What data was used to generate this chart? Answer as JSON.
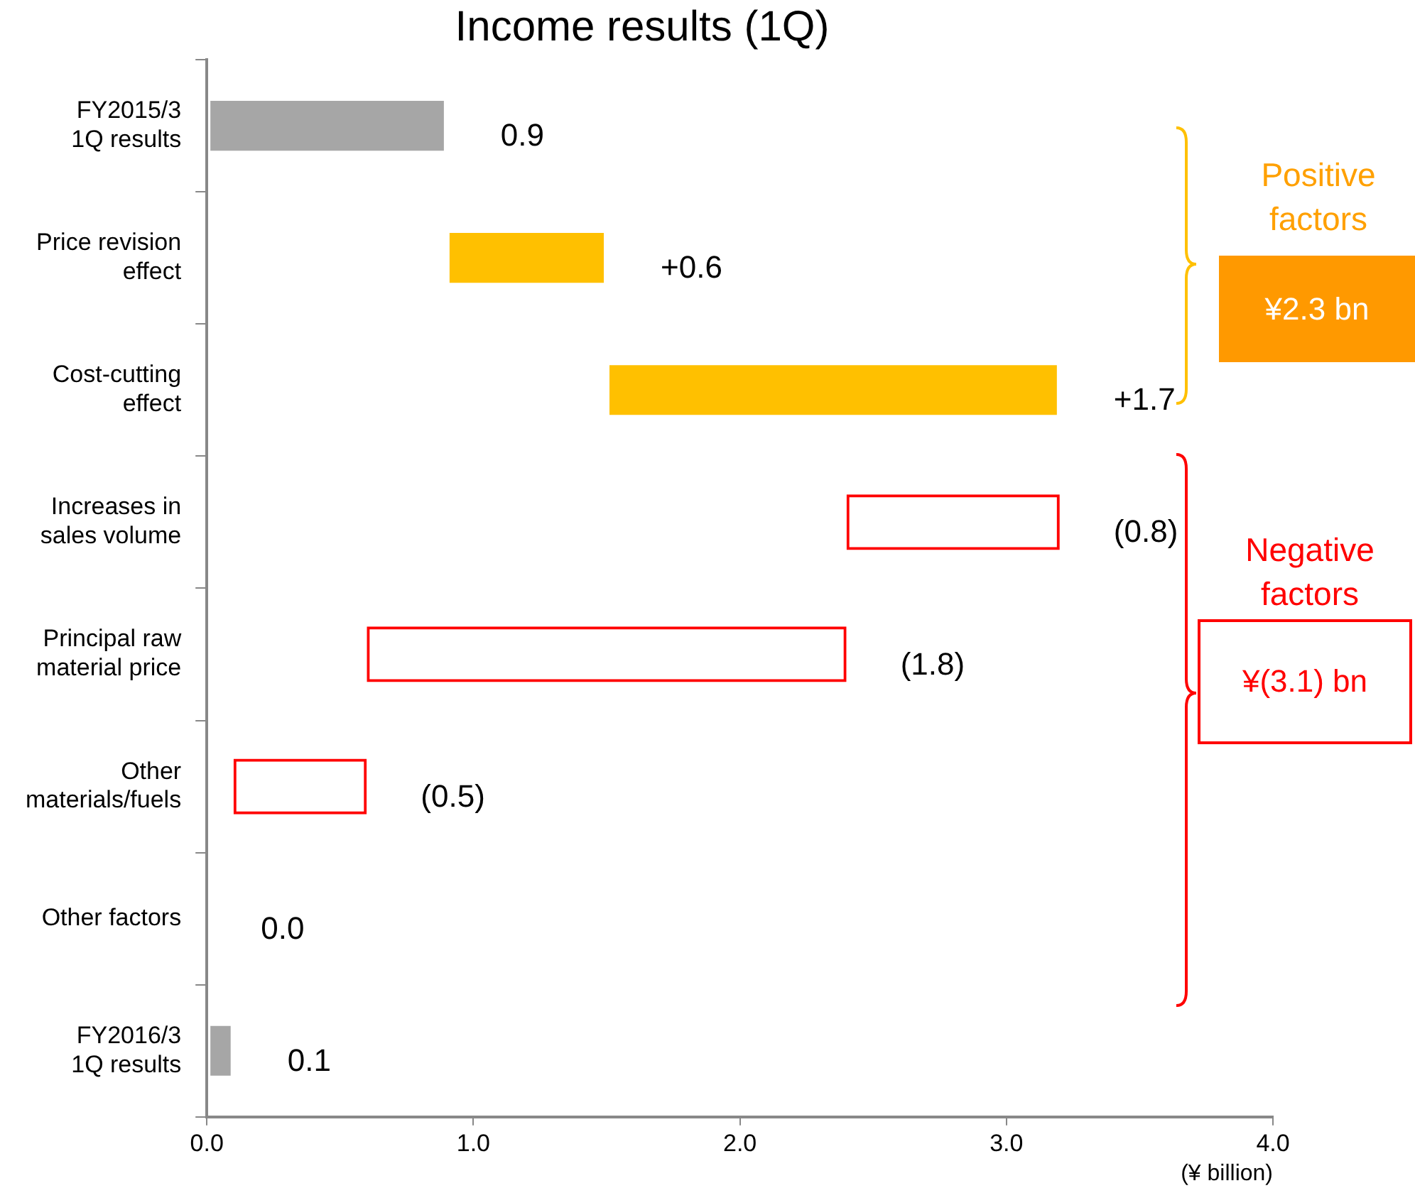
{
  "chart_data": {
    "type": "bar",
    "orientation": "horizontal",
    "title": "Income results (1Q)",
    "xlabel": "(¥ billion)",
    "categories": [
      "FY2015/3\n1Q results",
      "Price revision\neffect",
      "Cost-cutting\neffect",
      "Increases in\nsales volume",
      "Principal raw\nmaterial price",
      "Other\nmaterials/fuels",
      "Other factors",
      "FY2016/3\n1Q results"
    ],
    "base": [
      0,
      0.9,
      1.5,
      3.2,
      2.4,
      0.6,
      null,
      0
    ],
    "values": [
      0.9,
      0.6,
      1.7,
      -0.8,
      -1.8,
      -0.5,
      0.0,
      0.1
    ],
    "colors": [
      "#a6a6a6",
      "#ffc000",
      "#ffc000",
      "#ff0000",
      "#ff0000",
      "#ff0000",
      "#ff0000",
      "#a6a6a6"
    ],
    "value_labels": [
      "0.9",
      "+0.6",
      "+1.7",
      "(0.8)",
      "(1.8)",
      "(0.5)",
      "0.0",
      "0.1"
    ],
    "xlim": [
      0,
      4
    ],
    "xticks": [
      {
        "value": 0,
        "label": "0.0"
      },
      {
        "value": 1,
        "label": "1.0"
      },
      {
        "value": 2,
        "label": "2.0"
      },
      {
        "value": 3,
        "label": "3.0"
      },
      {
        "value": 4,
        "label": "4.0"
      }
    ],
    "grid": false,
    "legend": false,
    "annotations": [
      "Positive factors",
      "¥2.3 bn",
      "Negative factors",
      "¥(3.1) bn"
    ]
  }
}
